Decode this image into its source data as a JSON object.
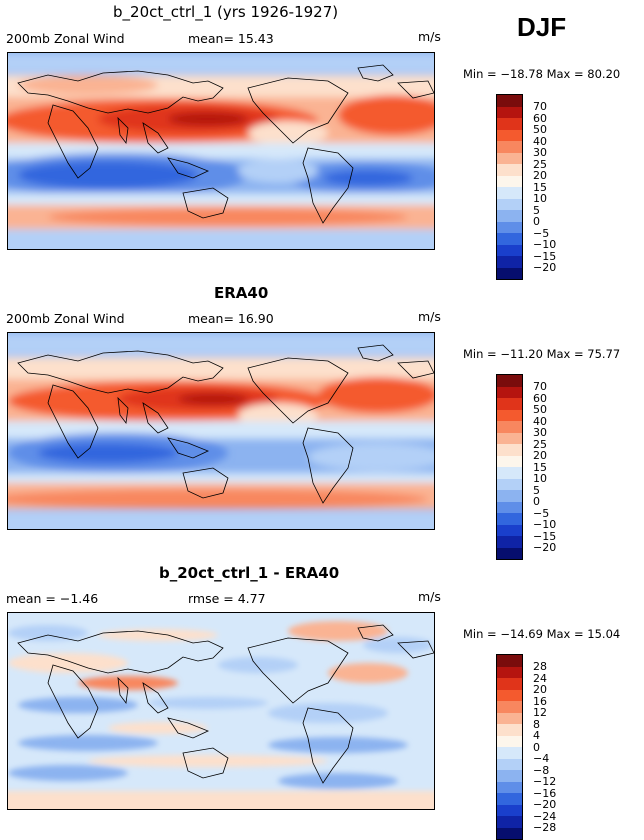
{
  "season": "DJF",
  "panels": [
    {
      "title": "b_20ct_ctrl_1 (yrs 1926-1927)",
      "left_label": "200mb Zonal Wind",
      "mean_text": "mean=  15.43",
      "units": "m/s",
      "minmax": "Min = −18.78 Max =  80.20",
      "kind": "abs"
    },
    {
      "title": "ERA40",
      "left_label": "200mb Zonal Wind",
      "mean_text": "mean=  16.90",
      "units": "m/s",
      "minmax": "Min = −11.20 Max =  75.77",
      "kind": "abs"
    },
    {
      "title": "b_20ct_ctrl_1 - ERA40",
      "left_label": "mean =  −1.46",
      "mean_text": "rmse =    4.77",
      "units": "m/s",
      "minmax": "Min = −14.69 Max =  15.04",
      "kind": "diff"
    }
  ],
  "colorbars": {
    "abs": {
      "labels": [
        "70",
        "60",
        "50",
        "40",
        "30",
        "25",
        "20",
        "15",
        "10",
        "5",
        "0",
        "−5",
        "−10",
        "−15",
        "−20"
      ],
      "colors": [
        "#7a0c0c",
        "#b5140f",
        "#e0341a",
        "#f45a2e",
        "#f8875f",
        "#fab393",
        "#fde0cc",
        "#fdf6ec",
        "#d6e8fa",
        "#b3d0f7",
        "#8cb3f0",
        "#5f8ee8",
        "#3266de",
        "#1a3fcc",
        "#0f23a6",
        "#060e6e"
      ]
    },
    "diff": {
      "labels": [
        "28",
        "24",
        "20",
        "16",
        "12",
        "8",
        "4",
        "0",
        "−4",
        "−8",
        "−12",
        "−16",
        "−20",
        "−24",
        "−28"
      ],
      "colors": [
        "#7a0c0c",
        "#b5140f",
        "#e0341a",
        "#f45a2e",
        "#f8875f",
        "#fab393",
        "#fde0cc",
        "#fdf6ec",
        "#d6e8fa",
        "#b3d0f7",
        "#8cb3f0",
        "#5f8ee8",
        "#3266de",
        "#1a3fcc",
        "#0f23a6",
        "#060e6e"
      ]
    }
  }
}
